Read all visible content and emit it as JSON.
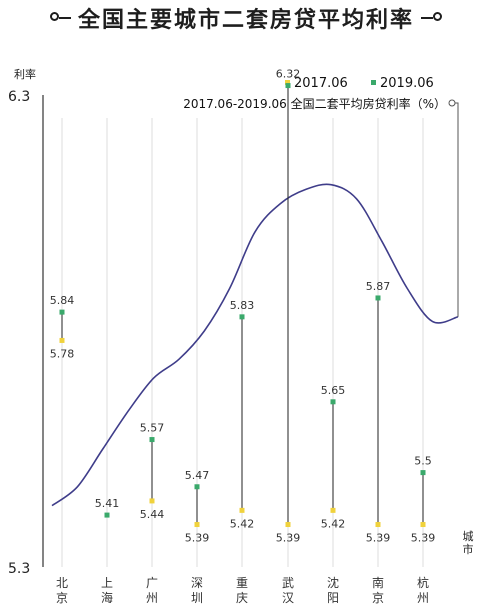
{
  "title": "全国主要城市二套房贷平均利率",
  "chart_data": {
    "type": "line",
    "title": "全国主要城市二套房贷平均利率",
    "ylabel": "利率",
    "xlabel": "城市",
    "ylim": [
      5.3,
      6.3
    ],
    "yticks": [
      "6.3",
      "5.3"
    ],
    "categories": [
      "北京",
      "上海",
      "广州",
      "深圳",
      "重庆",
      "武汉",
      "沈阳",
      "南京",
      "杭州"
    ],
    "series": [
      {
        "name": "2017.06",
        "color": "#f0d23c",
        "values": [
          5.78,
          5.41,
          5.44,
          5.39,
          5.42,
          5.39,
          5.42,
          5.39,
          5.39
        ],
        "labels": [
          "5.78",
          "",
          "5.44",
          "5.39",
          "5.42",
          "5.39",
          "5.42",
          "5.39",
          "5.39"
        ]
      },
      {
        "name": "2019.06",
        "color": "#3aa96b",
        "values": [
          5.84,
          5.41,
          5.57,
          5.47,
          5.83,
          6.32,
          5.65,
          5.87,
          5.5
        ],
        "labels": [
          "5.84",
          "5.41",
          "5.57",
          "5.47",
          "5.83",
          "6.32",
          "5.65",
          "5.87",
          "5.5"
        ]
      }
    ],
    "trend_line": {
      "name": "2017.06-2019.06 全国二套平均房贷利率（%）",
      "color": "#3f3d8a",
      "values": [
        5.43,
        5.47,
        5.55,
        5.63,
        5.7,
        5.74,
        5.8,
        5.89,
        6.01,
        6.07,
        6.1,
        6.11,
        6.08,
        5.99,
        5.89,
        5.82,
        5.83
      ]
    },
    "legend_position": "top-right",
    "grid": true
  }
}
